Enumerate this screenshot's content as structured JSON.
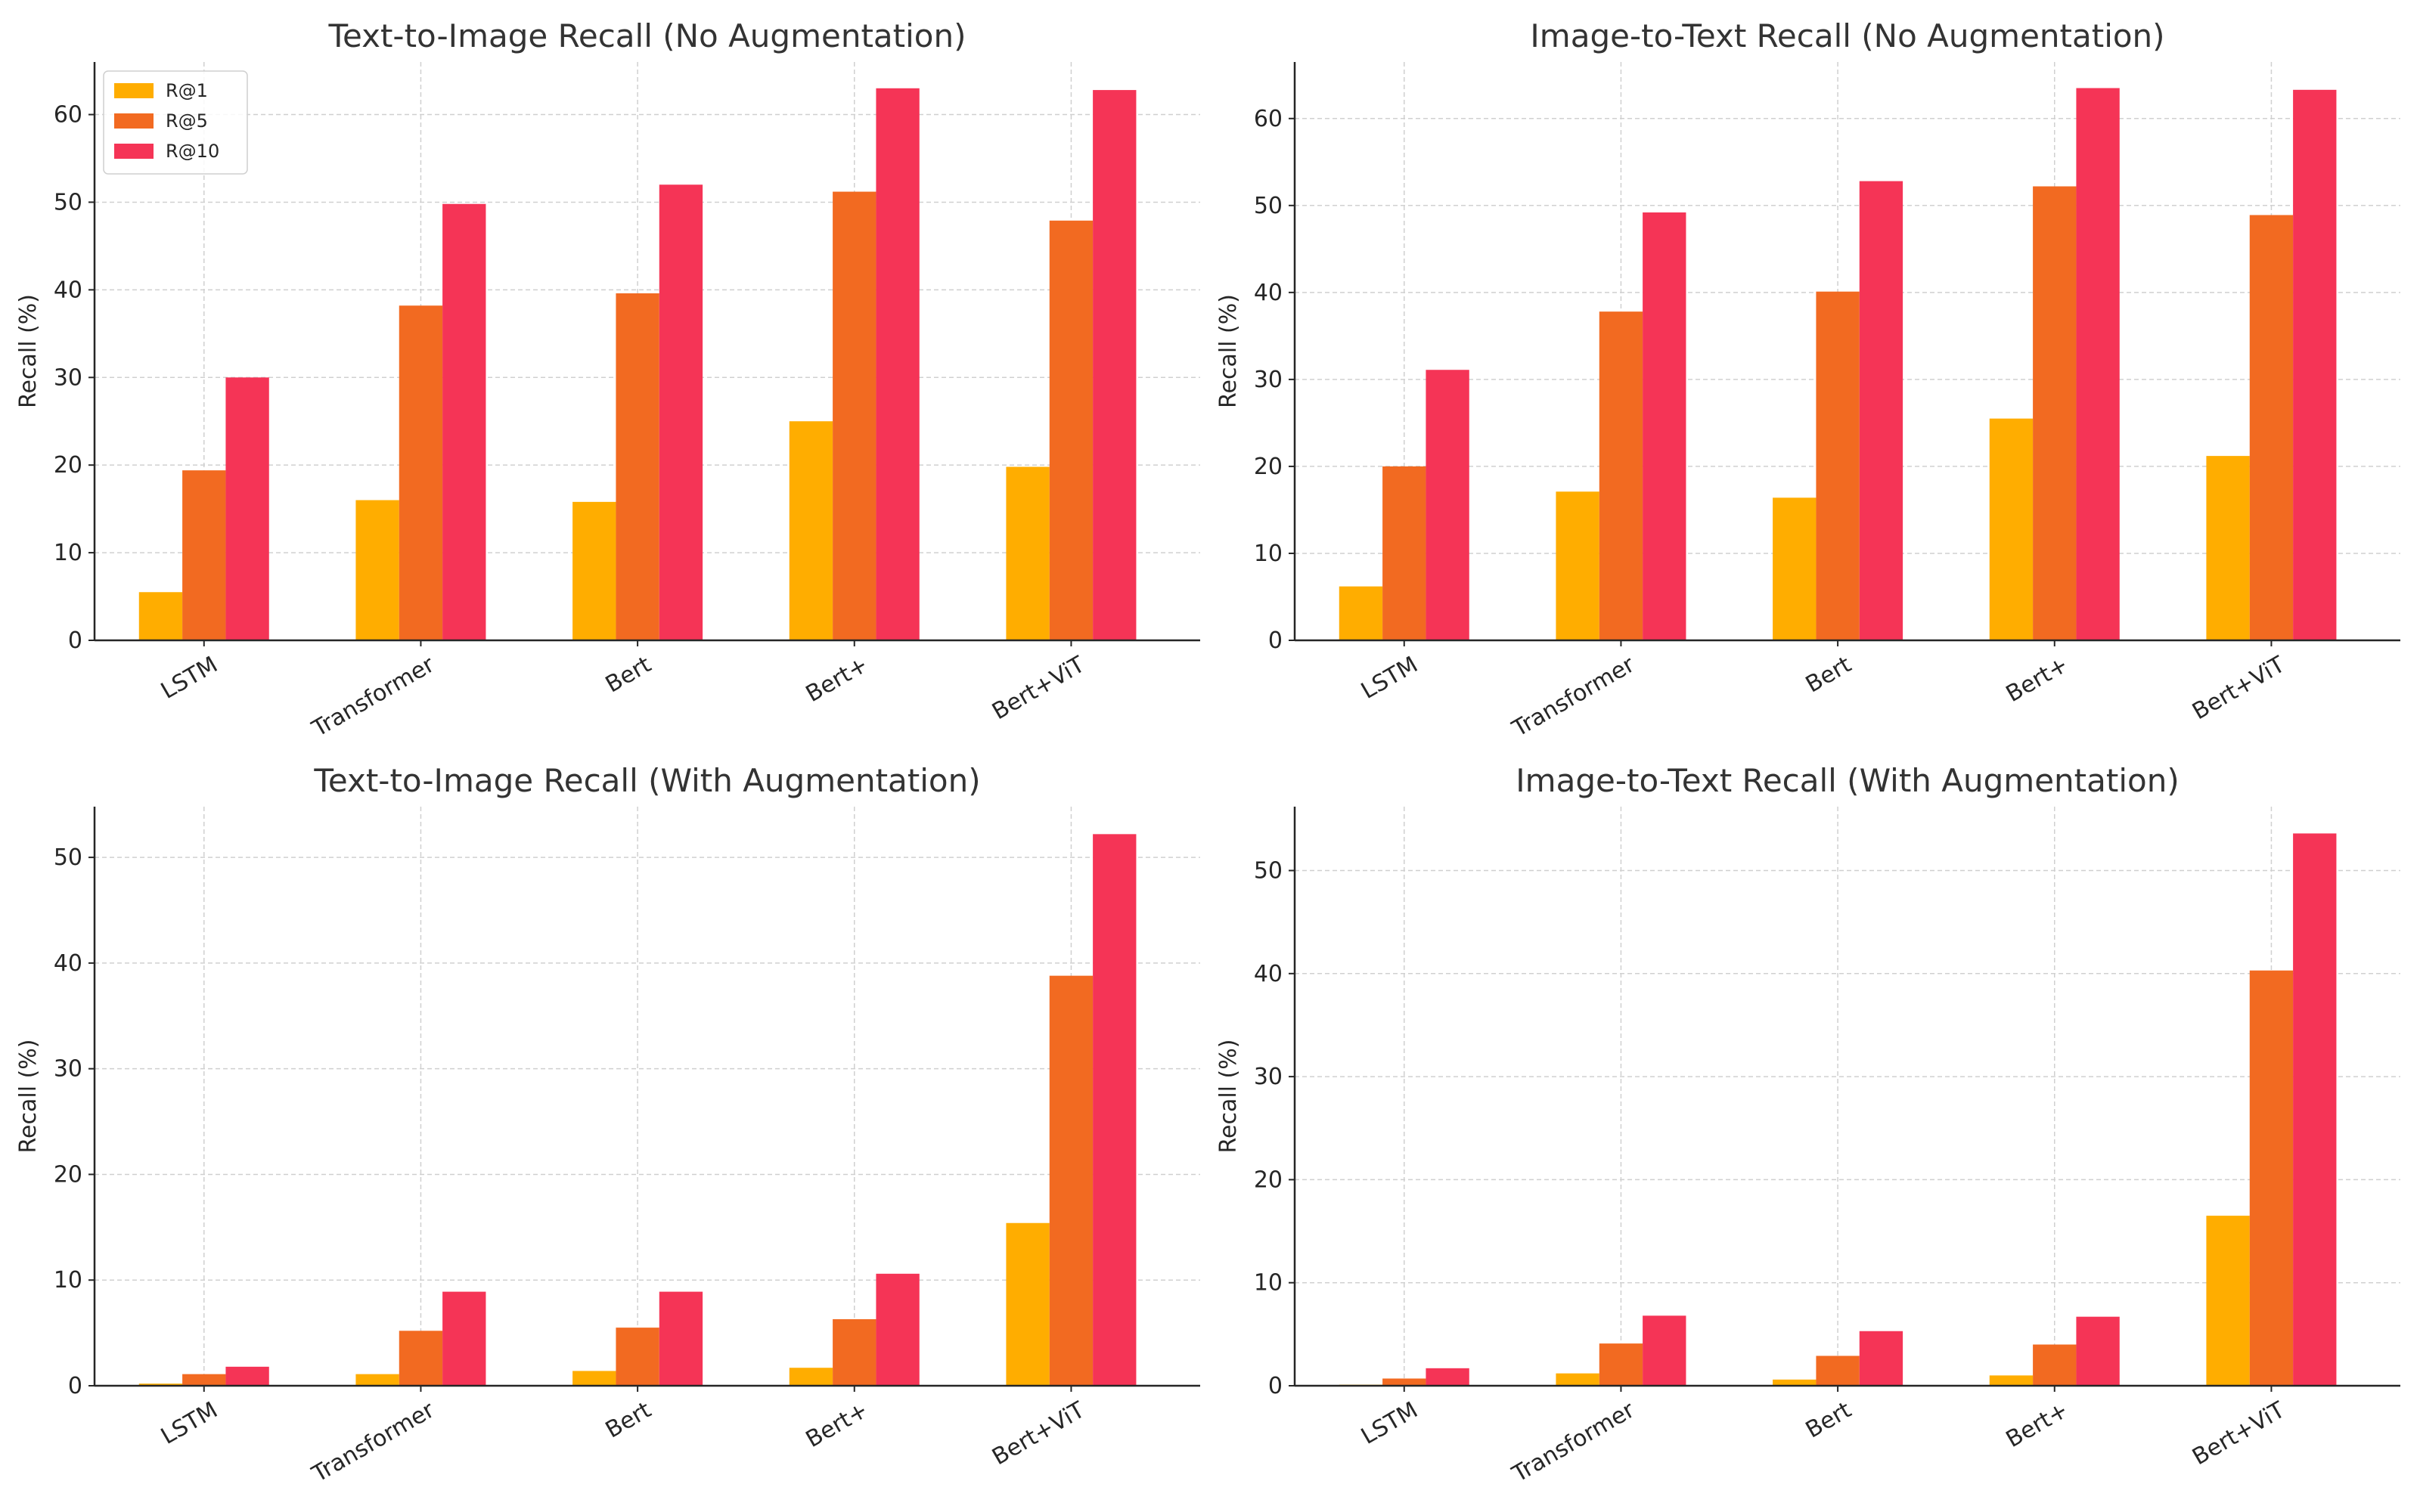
{
  "figure": {
    "colors": {
      "R@1": "#FFAD00",
      "R@5": "#F26A21",
      "R@10": "#F53456"
    }
  },
  "chart_data": [
    {
      "type": "bar",
      "title": "Text-to-Image Recall (No Augmentation)",
      "xlabel": "",
      "ylabel": "Recall (%)",
      "categories": [
        "LSTM",
        "Transformer",
        "Bert",
        "Bert+",
        "Bert+ViT"
      ],
      "series": [
        {
          "name": "R@1",
          "values": [
            5.5,
            16.0,
            15.8,
            25.0,
            19.8
          ]
        },
        {
          "name": "R@5",
          "values": [
            19.4,
            38.2,
            39.6,
            51.2,
            47.9
          ]
        },
        {
          "name": "R@10",
          "values": [
            30.0,
            49.8,
            52.0,
            63.0,
            62.8
          ]
        }
      ],
      "ylim": [
        0,
        66
      ],
      "yticks": [
        0,
        10,
        20,
        30,
        40,
        50,
        60
      ],
      "grid": true,
      "legend": "top-left"
    },
    {
      "type": "bar",
      "title": "Image-to-Text Recall (No Augmentation)",
      "xlabel": "",
      "ylabel": "Recall (%)",
      "categories": [
        "LSTM",
        "Transformer",
        "Bert",
        "Bert+",
        "Bert+ViT"
      ],
      "series": [
        {
          "name": "R@1",
          "values": [
            6.2,
            17.1,
            16.4,
            25.5,
            21.2
          ]
        },
        {
          "name": "R@5",
          "values": [
            20.0,
            37.8,
            40.1,
            52.2,
            48.9
          ]
        },
        {
          "name": "R@10",
          "values": [
            31.1,
            49.2,
            52.8,
            63.5,
            63.3
          ]
        }
      ],
      "ylim": [
        0,
        66.5
      ],
      "yticks": [
        0,
        10,
        20,
        30,
        40,
        50,
        60
      ],
      "grid": true,
      "legend": null
    },
    {
      "type": "bar",
      "title": "Text-to-Image Recall (With Augmentation)",
      "xlabel": "",
      "ylabel": "Recall (%)",
      "categories": [
        "LSTM",
        "Transformer",
        "Bert",
        "Bert+",
        "Bert+ViT"
      ],
      "series": [
        {
          "name": "R@1",
          "values": [
            0.2,
            1.1,
            1.4,
            1.7,
            15.4
          ]
        },
        {
          "name": "R@5",
          "values": [
            1.1,
            5.2,
            5.5,
            6.3,
            38.8
          ]
        },
        {
          "name": "R@10",
          "values": [
            1.8,
            8.9,
            8.9,
            10.6,
            52.2
          ]
        }
      ],
      "ylim": [
        0,
        54.8
      ],
      "yticks": [
        0,
        10,
        20,
        30,
        40,
        50
      ],
      "grid": true,
      "legend": null
    },
    {
      "type": "bar",
      "title": "Image-to-Text Recall (With Augmentation)",
      "xlabel": "",
      "ylabel": "Recall (%)",
      "categories": [
        "LSTM",
        "Transformer",
        "Bert",
        "Bert+",
        "Bert+ViT"
      ],
      "series": [
        {
          "name": "R@1",
          "values": [
            0.1,
            1.2,
            0.6,
            1.0,
            16.5
          ]
        },
        {
          "name": "R@5",
          "values": [
            0.7,
            4.1,
            2.9,
            4.0,
            40.3
          ]
        },
        {
          "name": "R@10",
          "values": [
            1.7,
            6.8,
            5.3,
            6.7,
            53.6
          ]
        }
      ],
      "ylim": [
        0,
        56.2
      ],
      "yticks": [
        0,
        10,
        20,
        30,
        40,
        50
      ],
      "grid": true,
      "legend": null
    }
  ]
}
